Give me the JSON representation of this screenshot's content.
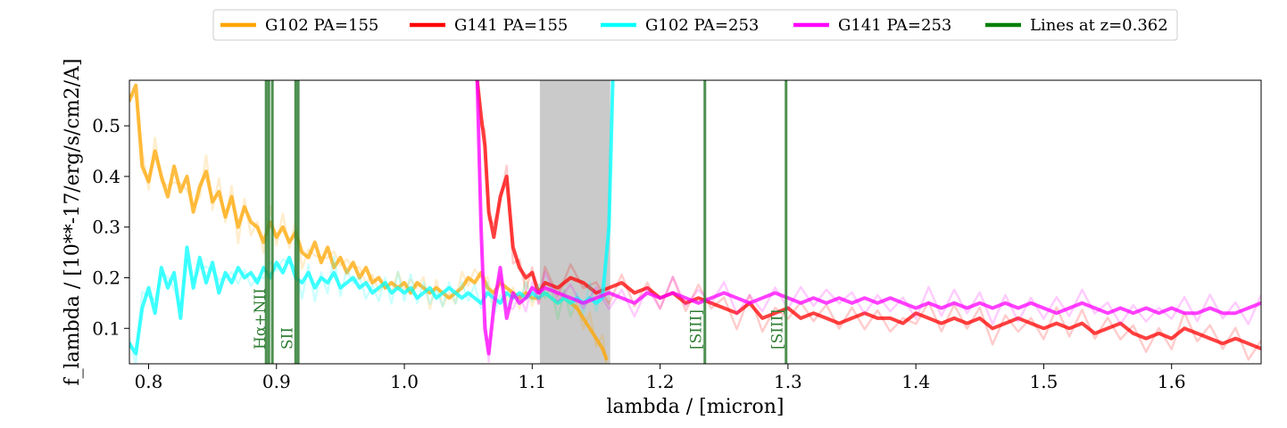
{
  "chart_data": {
    "type": "line",
    "xlabel": "lambda / [micron]",
    "ylabel": "f_lambda / [10**-17/erg/s/cm2/A]",
    "xlim": [
      0.785,
      1.67
    ],
    "ylim": [
      0.03,
      0.59
    ],
    "xticks": [
      "0.8",
      "0.9",
      "1.0",
      "1.1",
      "1.2",
      "1.3",
      "1.4",
      "1.5",
      "1.6"
    ],
    "xtick_values": [
      0.8,
      0.9,
      1.0,
      1.1,
      1.2,
      1.3,
      1.4,
      1.5,
      1.6
    ],
    "yticks": [
      "0.1",
      "0.2",
      "0.3",
      "0.4",
      "0.5"
    ],
    "ytick_values": [
      0.1,
      0.2,
      0.3,
      0.4,
      0.5
    ],
    "grid": false,
    "legend_position": "top-center, outside plot",
    "shaded_region": {
      "x": [
        1.106,
        1.161
      ],
      "color": "#bdbdbd"
    },
    "series": [
      {
        "name": "G102 PA=155",
        "color": "#ffa500",
        "x": [
          0.785,
          0.79,
          0.795,
          0.8,
          0.805,
          0.81,
          0.815,
          0.82,
          0.825,
          0.83,
          0.835,
          0.84,
          0.845,
          0.85,
          0.855,
          0.86,
          0.865,
          0.87,
          0.875,
          0.88,
          0.885,
          0.89,
          0.895,
          0.9,
          0.905,
          0.91,
          0.915,
          0.92,
          0.925,
          0.93,
          0.935,
          0.94,
          0.945,
          0.95,
          0.955,
          0.96,
          0.965,
          0.97,
          0.975,
          0.98,
          0.985,
          0.99,
          0.995,
          1.0,
          1.005,
          1.01,
          1.015,
          1.02,
          1.025,
          1.03,
          1.035,
          1.04,
          1.045,
          1.05,
          1.055,
          1.06,
          1.065,
          1.07,
          1.075,
          1.08,
          1.085,
          1.09,
          1.095,
          1.1,
          1.105,
          1.11,
          1.115,
          1.12,
          1.125,
          1.13,
          1.135,
          1.14,
          1.145,
          1.15,
          1.155,
          1.158
        ],
        "values": [
          0.55,
          0.58,
          0.42,
          0.39,
          0.45,
          0.4,
          0.36,
          0.42,
          0.37,
          0.4,
          0.33,
          0.38,
          0.41,
          0.35,
          0.37,
          0.32,
          0.36,
          0.3,
          0.34,
          0.31,
          0.3,
          0.27,
          0.31,
          0.28,
          0.3,
          0.27,
          0.29,
          0.25,
          0.24,
          0.27,
          0.23,
          0.26,
          0.22,
          0.24,
          0.21,
          0.23,
          0.2,
          0.22,
          0.19,
          0.2,
          0.18,
          0.19,
          0.18,
          0.19,
          0.17,
          0.19,
          0.18,
          0.17,
          0.18,
          0.17,
          0.16,
          0.17,
          0.18,
          0.2,
          0.19,
          0.21,
          0.18,
          0.17,
          0.19,
          0.18,
          0.17,
          0.16,
          0.17,
          0.16,
          0.16,
          0.17,
          0.16,
          0.15,
          0.16,
          0.15,
          0.14,
          0.12,
          0.1,
          0.08,
          0.06,
          0.04
        ]
      },
      {
        "name": "G141 PA=155",
        "color": "#ff0000",
        "x": [
          1.057,
          1.06,
          1.063,
          1.066,
          1.07,
          1.075,
          1.08,
          1.085,
          1.09,
          1.095,
          1.1,
          1.105,
          1.11,
          1.12,
          1.13,
          1.14,
          1.15,
          1.16,
          1.17,
          1.18,
          1.19,
          1.2,
          1.21,
          1.22,
          1.23,
          1.24,
          1.25,
          1.26,
          1.27,
          1.28,
          1.29,
          1.3,
          1.31,
          1.32,
          1.33,
          1.34,
          1.35,
          1.36,
          1.37,
          1.38,
          1.39,
          1.4,
          1.41,
          1.42,
          1.43,
          1.44,
          1.45,
          1.46,
          1.47,
          1.48,
          1.49,
          1.5,
          1.51,
          1.52,
          1.53,
          1.54,
          1.55,
          1.56,
          1.57,
          1.58,
          1.59,
          1.6,
          1.61,
          1.62,
          1.63,
          1.64,
          1.65,
          1.66,
          1.67
        ],
        "values": [
          0.59,
          0.52,
          0.46,
          0.33,
          0.28,
          0.36,
          0.4,
          0.26,
          0.22,
          0.2,
          0.21,
          0.17,
          0.19,
          0.18,
          0.2,
          0.19,
          0.17,
          0.18,
          0.19,
          0.17,
          0.18,
          0.16,
          0.17,
          0.15,
          0.16,
          0.15,
          0.14,
          0.13,
          0.15,
          0.12,
          0.13,
          0.14,
          0.12,
          0.13,
          0.12,
          0.11,
          0.12,
          0.13,
          0.12,
          0.12,
          0.11,
          0.13,
          0.12,
          0.11,
          0.12,
          0.11,
          0.12,
          0.1,
          0.11,
          0.12,
          0.11,
          0.1,
          0.11,
          0.1,
          0.11,
          0.09,
          0.1,
          0.11,
          0.09,
          0.08,
          0.09,
          0.08,
          0.1,
          0.09,
          0.08,
          0.07,
          0.08,
          0.07,
          0.06
        ]
      },
      {
        "name": "G102 PA=253",
        "color": "#00ffff",
        "x": [
          0.785,
          0.79,
          0.795,
          0.8,
          0.805,
          0.81,
          0.815,
          0.82,
          0.825,
          0.83,
          0.835,
          0.84,
          0.845,
          0.85,
          0.855,
          0.86,
          0.865,
          0.87,
          0.875,
          0.88,
          0.885,
          0.89,
          0.895,
          0.9,
          0.905,
          0.91,
          0.915,
          0.92,
          0.925,
          0.93,
          0.935,
          0.94,
          0.945,
          0.95,
          0.955,
          0.96,
          0.965,
          0.97,
          0.975,
          0.98,
          0.985,
          0.99,
          0.995,
          1.0,
          1.005,
          1.01,
          1.015,
          1.02,
          1.025,
          1.03,
          1.035,
          1.04,
          1.045,
          1.05,
          1.055,
          1.06,
          1.065,
          1.07,
          1.075,
          1.08,
          1.085,
          1.09,
          1.095,
          1.1,
          1.105,
          1.11,
          1.115,
          1.12,
          1.125,
          1.13,
          1.135,
          1.14,
          1.145,
          1.15,
          1.155,
          1.16,
          1.163
        ],
        "values": [
          0.07,
          0.05,
          0.14,
          0.18,
          0.13,
          0.22,
          0.18,
          0.21,
          0.12,
          0.26,
          0.18,
          0.24,
          0.19,
          0.23,
          0.17,
          0.21,
          0.19,
          0.22,
          0.2,
          0.21,
          0.19,
          0.22,
          0.2,
          0.23,
          0.21,
          0.24,
          0.2,
          0.19,
          0.21,
          0.18,
          0.2,
          0.19,
          0.21,
          0.18,
          0.19,
          0.2,
          0.18,
          0.19,
          0.17,
          0.18,
          0.19,
          0.17,
          0.18,
          0.17,
          0.18,
          0.16,
          0.17,
          0.18,
          0.16,
          0.17,
          0.18,
          0.17,
          0.16,
          0.17,
          0.16,
          0.15,
          0.17,
          0.16,
          0.15,
          0.17,
          0.16,
          0.17,
          0.16,
          0.17,
          0.16,
          0.17,
          0.16,
          0.15,
          0.16,
          0.15,
          0.16,
          0.15,
          0.16,
          0.15,
          0.16,
          0.3,
          0.59
        ]
      },
      {
        "name": "G141 PA=253",
        "color": "#ff00ff",
        "x": [
          1.057,
          1.06,
          1.063,
          1.066,
          1.07,
          1.075,
          1.08,
          1.085,
          1.09,
          1.095,
          1.1,
          1.105,
          1.11,
          1.12,
          1.13,
          1.14,
          1.15,
          1.16,
          1.17,
          1.18,
          1.19,
          1.2,
          1.21,
          1.22,
          1.23,
          1.24,
          1.25,
          1.26,
          1.27,
          1.28,
          1.29,
          1.3,
          1.31,
          1.32,
          1.33,
          1.34,
          1.35,
          1.36,
          1.37,
          1.38,
          1.39,
          1.4,
          1.41,
          1.42,
          1.43,
          1.44,
          1.45,
          1.46,
          1.47,
          1.48,
          1.49,
          1.5,
          1.51,
          1.52,
          1.53,
          1.54,
          1.55,
          1.56,
          1.57,
          1.58,
          1.59,
          1.6,
          1.61,
          1.62,
          1.63,
          1.64,
          1.65,
          1.66,
          1.67
        ],
        "values": [
          0.59,
          0.3,
          0.1,
          0.05,
          0.14,
          0.22,
          0.12,
          0.17,
          0.15,
          0.16,
          0.18,
          0.17,
          0.18,
          0.17,
          0.16,
          0.15,
          0.16,
          0.17,
          0.16,
          0.15,
          0.17,
          0.16,
          0.17,
          0.16,
          0.15,
          0.16,
          0.17,
          0.16,
          0.15,
          0.16,
          0.17,
          0.16,
          0.15,
          0.16,
          0.15,
          0.16,
          0.15,
          0.16,
          0.15,
          0.16,
          0.15,
          0.14,
          0.15,
          0.14,
          0.15,
          0.14,
          0.15,
          0.14,
          0.15,
          0.14,
          0.15,
          0.14,
          0.13,
          0.14,
          0.15,
          0.14,
          0.13,
          0.14,
          0.13,
          0.14,
          0.13,
          0.14,
          0.13,
          0.13,
          0.14,
          0.13,
          0.13,
          0.14,
          0.15
        ]
      }
    ],
    "lines": {
      "legend_name": "Lines at z=0.362",
      "color": "#2e7d32",
      "marks": [
        {
          "x": 0.8919,
          "label": ""
        },
        {
          "x": 0.894,
          "label": "Hα+NII"
        },
        {
          "x": 0.8968,
          "label": ""
        },
        {
          "x": 0.915,
          "label": "SII"
        },
        {
          "x": 0.917,
          "label": ""
        },
        {
          "x": 1.235,
          "label": "[SIII]"
        },
        {
          "x": 1.2985,
          "label": "[SIII]"
        }
      ]
    }
  }
}
